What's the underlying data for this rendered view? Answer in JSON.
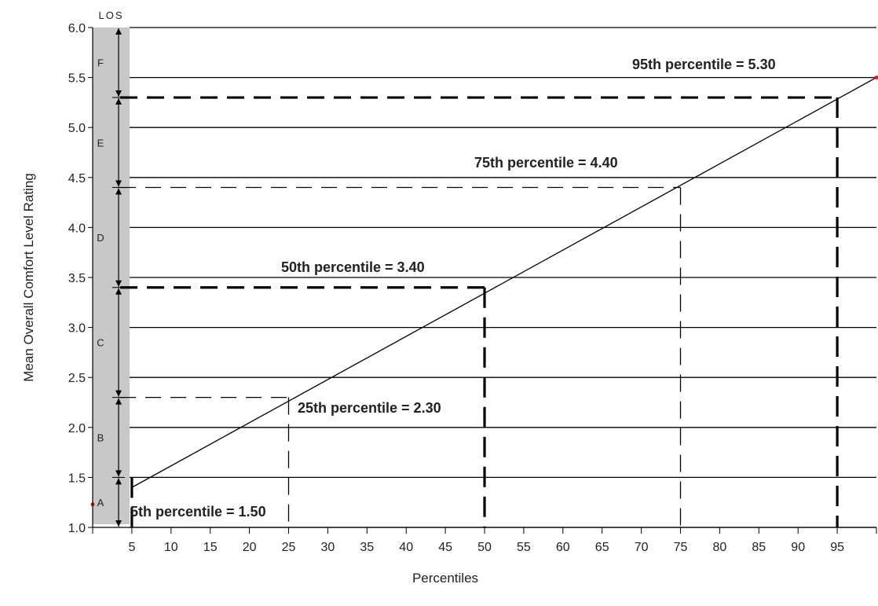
{
  "chart_data": {
    "type": "line",
    "title": "",
    "xlabel": "Percentiles",
    "ylabel": "Mean Overall Comfort Level Rating",
    "xlim": [
      0,
      100
    ],
    "ylim": [
      1.0,
      6.0
    ],
    "x_ticks": [
      5,
      10,
      15,
      20,
      25,
      30,
      35,
      40,
      45,
      50,
      55,
      60,
      65,
      70,
      75,
      80,
      85,
      90,
      95
    ],
    "y_ticks": [
      "1.0",
      "1.5",
      "2.0",
      "2.5",
      "3.0",
      "3.5",
      "4.0",
      "4.5",
      "5.0",
      "5.5",
      "6.0"
    ],
    "grid": "horizontal",
    "series": [
      {
        "x": [
          5,
          100
        ],
        "y": [
          1.4,
          5.5
        ]
      }
    ],
    "marker_points": [
      {
        "x": 0,
        "y": 1.23,
        "color": "#e02020"
      },
      {
        "x": 100,
        "y": 5.5,
        "color": "#e02020"
      }
    ],
    "percentile_lines": [
      {
        "p": 5,
        "value": 1.5,
        "label": "5th percentile = 1.50",
        "weight": "heavy"
      },
      {
        "p": 25,
        "value": 2.3,
        "label": "25th percentile = 2.30",
        "weight": "light"
      },
      {
        "p": 50,
        "value": 3.4,
        "label": "50th percentile = 3.40",
        "weight": "heavy"
      },
      {
        "p": 75,
        "value": 4.4,
        "label": "75th percentile = 4.40",
        "weight": "light"
      },
      {
        "p": 95,
        "value": 5.3,
        "label": "95th percentile = 5.30",
        "weight": "heavy"
      }
    ],
    "los": {
      "title": "LOS",
      "bounds": [
        1.0,
        1.5,
        2.3,
        3.4,
        4.4,
        5.3,
        6.0
      ],
      "bands": [
        "A",
        "B",
        "C",
        "D",
        "E",
        "F"
      ]
    }
  },
  "colors": {
    "los_band": "#c8c8c8",
    "line": "#000000",
    "marker": "#e02020"
  }
}
